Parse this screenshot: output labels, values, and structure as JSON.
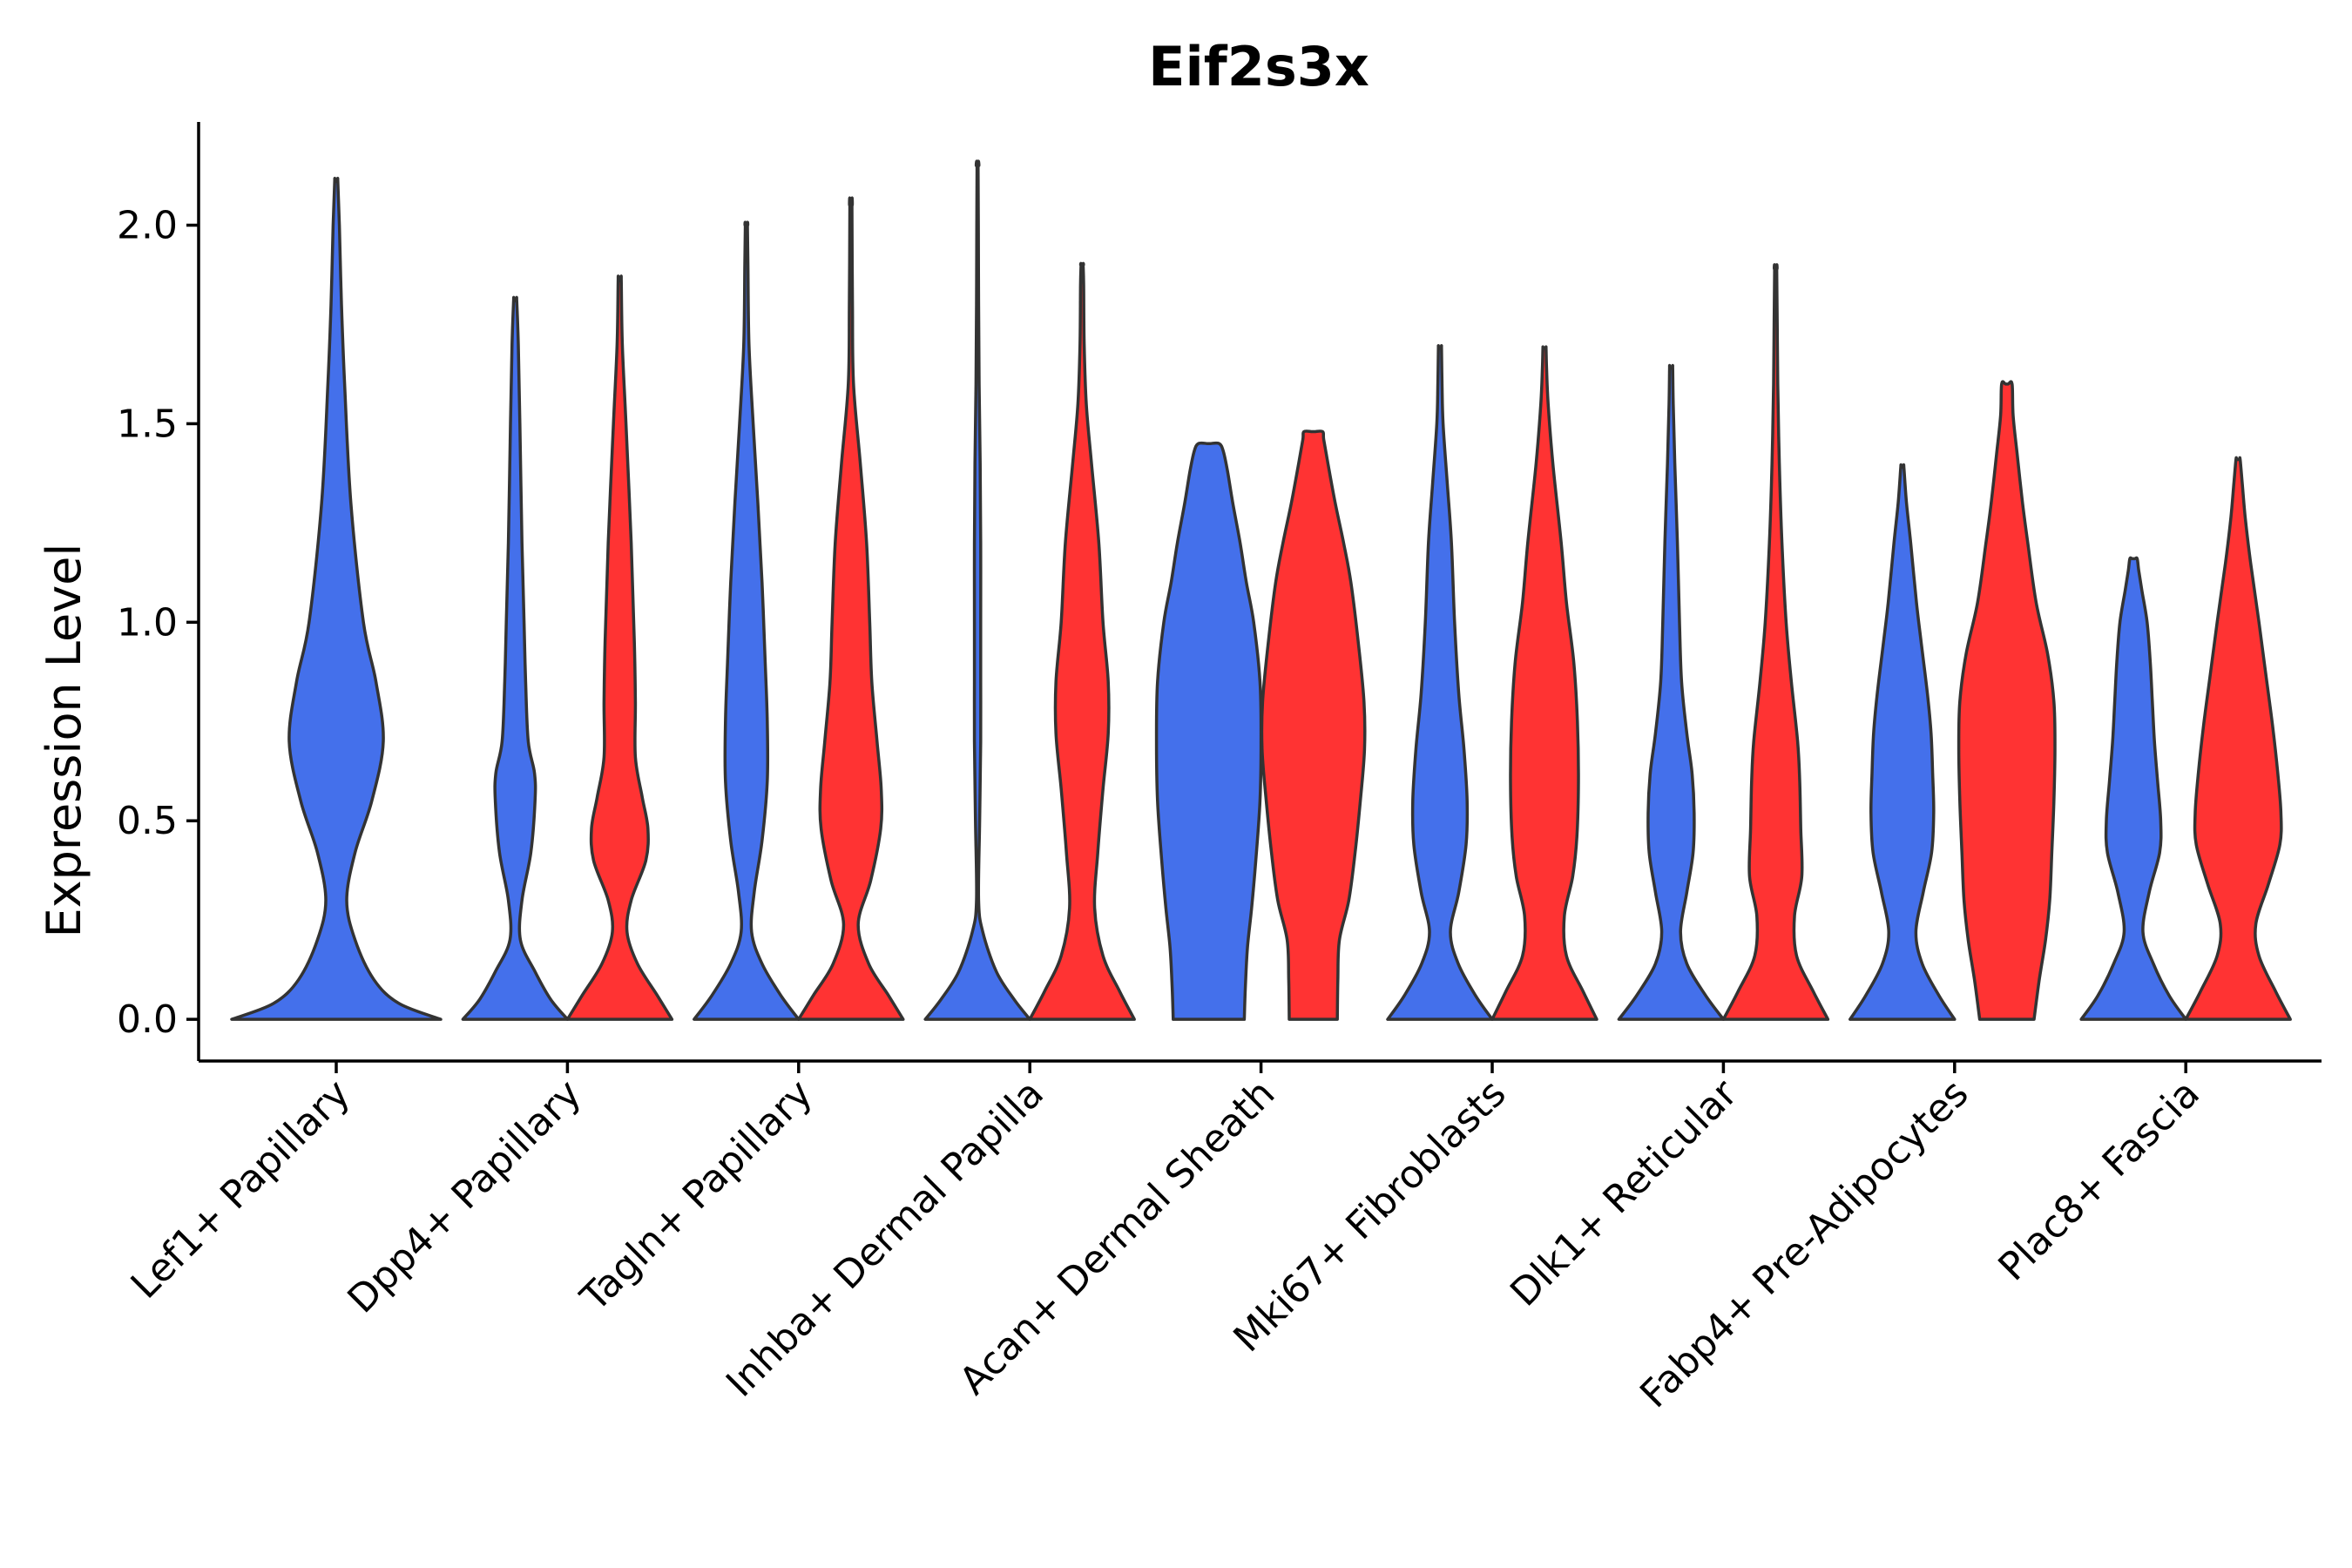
{
  "chart_data": {
    "type": "violin",
    "title": "Eif2s3x",
    "xlabel": "",
    "ylabel": "Expression Level",
    "ylim": [
      -0.105,
      2.26
    ],
    "yticks": [
      0.0,
      0.5,
      1.0,
      1.5,
      2.0
    ],
    "ytick_labels": [
      "0.0",
      "0.5",
      "1.0",
      "1.5",
      "2.0"
    ],
    "grid": false,
    "legend": "none",
    "colors": {
      "blue": "#4470EB",
      "red": "#FF3333",
      "outline": "#333333"
    },
    "categories": [
      "Lef1+ Papillary",
      "Dpp4+ Papillary",
      "Tagln+ Papillary",
      "Inhba+ Dermal Papilla",
      "Acan+ Dermal Sheath",
      "Mki67+ Fibroblasts",
      "Dlk1+ Reticular",
      "Fabp4+ Pre-Adipocytes",
      "Plac8+ Fascia"
    ],
    "violins": [
      {
        "category": "Lef1+ Papillary",
        "group": "blue",
        "max": 2.11,
        "profile": [
          [
            0.0,
            1.0
          ],
          [
            0.04,
            0.6
          ],
          [
            0.1,
            0.36
          ],
          [
            0.2,
            0.18
          ],
          [
            0.3,
            0.1
          ],
          [
            0.42,
            0.18
          ],
          [
            0.55,
            0.34
          ],
          [
            0.7,
            0.45
          ],
          [
            0.85,
            0.38
          ],
          [
            1.0,
            0.26
          ],
          [
            1.3,
            0.14
          ],
          [
            1.6,
            0.08
          ],
          [
            1.8,
            0.05
          ],
          [
            2.0,
            0.03
          ],
          [
            2.11,
            0.015
          ]
        ]
      },
      {
        "category": "Dpp4+ Papillary",
        "group": "blue",
        "max": 1.81,
        "profile": [
          [
            0.0,
            1.0
          ],
          [
            0.05,
            0.68
          ],
          [
            0.12,
            0.38
          ],
          [
            0.2,
            0.1
          ],
          [
            0.3,
            0.13
          ],
          [
            0.42,
            0.3
          ],
          [
            0.55,
            0.38
          ],
          [
            0.62,
            0.37
          ],
          [
            0.7,
            0.25
          ],
          [
            0.85,
            0.2
          ],
          [
            1.0,
            0.17
          ],
          [
            1.2,
            0.13
          ],
          [
            1.5,
            0.09
          ],
          [
            1.7,
            0.06
          ],
          [
            1.81,
            0.03
          ]
        ]
      },
      {
        "category": "Dpp4+ Papillary",
        "group": "red",
        "max": 1.86,
        "profile": [
          [
            0.0,
            1.0
          ],
          [
            0.06,
            0.72
          ],
          [
            0.14,
            0.34
          ],
          [
            0.22,
            0.14
          ],
          [
            0.3,
            0.22
          ],
          [
            0.4,
            0.5
          ],
          [
            0.48,
            0.54
          ],
          [
            0.56,
            0.43
          ],
          [
            0.66,
            0.3
          ],
          [
            0.8,
            0.3
          ],
          [
            0.95,
            0.28
          ],
          [
            1.2,
            0.22
          ],
          [
            1.5,
            0.12
          ],
          [
            1.7,
            0.05
          ],
          [
            1.86,
            0.03
          ]
        ]
      },
      {
        "category": "Tagln+ Papillary",
        "group": "blue",
        "max": 2.0,
        "profile": [
          [
            0.0,
            1.0
          ],
          [
            0.06,
            0.66
          ],
          [
            0.14,
            0.3
          ],
          [
            0.22,
            0.1
          ],
          [
            0.32,
            0.15
          ],
          [
            0.45,
            0.3
          ],
          [
            0.6,
            0.4
          ],
          [
            0.75,
            0.4
          ],
          [
            0.9,
            0.36
          ],
          [
            1.1,
            0.3
          ],
          [
            1.3,
            0.22
          ],
          [
            1.5,
            0.13
          ],
          [
            1.7,
            0.05
          ],
          [
            1.9,
            0.03
          ],
          [
            2.0,
            0.02
          ]
        ]
      },
      {
        "category": "Tagln+ Papillary",
        "group": "red",
        "max": 2.05,
        "profile": [
          [
            0.0,
            1.0
          ],
          [
            0.06,
            0.72
          ],
          [
            0.14,
            0.34
          ],
          [
            0.24,
            0.14
          ],
          [
            0.35,
            0.38
          ],
          [
            0.48,
            0.57
          ],
          [
            0.58,
            0.58
          ],
          [
            0.7,
            0.5
          ],
          [
            0.85,
            0.4
          ],
          [
            1.0,
            0.36
          ],
          [
            1.2,
            0.3
          ],
          [
            1.4,
            0.18
          ],
          [
            1.6,
            0.05
          ],
          [
            1.8,
            0.03
          ],
          [
            2.05,
            0.02
          ]
        ]
      },
      {
        "category": "Inhba+ Dermal Papilla",
        "group": "blue",
        "max": 2.15,
        "profile": [
          [
            0.0,
            1.0
          ],
          [
            0.05,
            0.7
          ],
          [
            0.12,
            0.36
          ],
          [
            0.22,
            0.1
          ],
          [
            0.3,
            0.02
          ],
          [
            0.5,
            0.04
          ],
          [
            0.7,
            0.06
          ],
          [
            0.85,
            0.06
          ],
          [
            1.0,
            0.06
          ],
          [
            1.2,
            0.06
          ],
          [
            1.4,
            0.05
          ],
          [
            1.6,
            0.03
          ],
          [
            1.8,
            0.02
          ],
          [
            2.0,
            0.015
          ],
          [
            2.15,
            0.01
          ]
        ]
      },
      {
        "category": "Inhba+ Dermal Papilla",
        "group": "red",
        "max": 1.9,
        "profile": [
          [
            0.0,
            1.0
          ],
          [
            0.07,
            0.72
          ],
          [
            0.16,
            0.4
          ],
          [
            0.28,
            0.24
          ],
          [
            0.42,
            0.3
          ],
          [
            0.58,
            0.4
          ],
          [
            0.72,
            0.5
          ],
          [
            0.85,
            0.5
          ],
          [
            1.0,
            0.4
          ],
          [
            1.2,
            0.32
          ],
          [
            1.4,
            0.18
          ],
          [
            1.55,
            0.08
          ],
          [
            1.7,
            0.04
          ],
          [
            1.85,
            0.03
          ],
          [
            1.9,
            0.02
          ]
        ]
      },
      {
        "category": "Acan+ Dermal Sheath",
        "group": "blue",
        "max": 1.45,
        "profile": [
          [
            0.0,
            0.68
          ],
          [
            0.08,
            0.7
          ],
          [
            0.18,
            0.74
          ],
          [
            0.28,
            0.82
          ],
          [
            0.4,
            0.9
          ],
          [
            0.55,
            0.98
          ],
          [
            0.7,
            1.0
          ],
          [
            0.85,
            0.98
          ],
          [
            1.0,
            0.86
          ],
          [
            1.1,
            0.72
          ],
          [
            1.2,
            0.6
          ],
          [
            1.3,
            0.46
          ],
          [
            1.38,
            0.36
          ],
          [
            1.43,
            0.28
          ],
          [
            1.45,
            0.2
          ]
        ]
      },
      {
        "category": "Acan+ Dermal Sheath",
        "group": "red",
        "max": 1.48,
        "profile": [
          [
            0.0,
            0.46
          ],
          [
            0.1,
            0.47
          ],
          [
            0.2,
            0.5
          ],
          [
            0.3,
            0.68
          ],
          [
            0.42,
            0.8
          ],
          [
            0.55,
            0.9
          ],
          [
            0.68,
            0.98
          ],
          [
            0.8,
            0.97
          ],
          [
            0.95,
            0.86
          ],
          [
            1.1,
            0.72
          ],
          [
            1.2,
            0.58
          ],
          [
            1.3,
            0.42
          ],
          [
            1.4,
            0.28
          ],
          [
            1.46,
            0.2
          ],
          [
            1.48,
            0.18
          ]
        ]
      },
      {
        "category": "Mki67+ Fibroblasts",
        "group": "blue",
        "max": 1.69,
        "profile": [
          [
            0.0,
            1.0
          ],
          [
            0.06,
            0.68
          ],
          [
            0.14,
            0.35
          ],
          [
            0.22,
            0.2
          ],
          [
            0.32,
            0.36
          ],
          [
            0.44,
            0.5
          ],
          [
            0.55,
            0.52
          ],
          [
            0.68,
            0.46
          ],
          [
            0.82,
            0.36
          ],
          [
            1.0,
            0.28
          ],
          [
            1.2,
            0.22
          ],
          [
            1.35,
            0.14
          ],
          [
            1.5,
            0.06
          ],
          [
            1.6,
            0.04
          ],
          [
            1.69,
            0.03
          ]
        ]
      },
      {
        "category": "Mki67+ Fibroblasts",
        "group": "red",
        "max": 1.69,
        "profile": [
          [
            0.0,
            1.0
          ],
          [
            0.07,
            0.74
          ],
          [
            0.16,
            0.42
          ],
          [
            0.26,
            0.38
          ],
          [
            0.36,
            0.54
          ],
          [
            0.46,
            0.62
          ],
          [
            0.6,
            0.65
          ],
          [
            0.75,
            0.63
          ],
          [
            0.9,
            0.56
          ],
          [
            1.05,
            0.42
          ],
          [
            1.2,
            0.32
          ],
          [
            1.4,
            0.16
          ],
          [
            1.55,
            0.07
          ],
          [
            1.64,
            0.04
          ],
          [
            1.69,
            0.03
          ]
        ]
      },
      {
        "category": "Dlk1+ Reticular",
        "group": "blue",
        "max": 1.64,
        "profile": [
          [
            0.0,
            1.0
          ],
          [
            0.06,
            0.66
          ],
          [
            0.14,
            0.3
          ],
          [
            0.22,
            0.18
          ],
          [
            0.32,
            0.3
          ],
          [
            0.42,
            0.42
          ],
          [
            0.52,
            0.44
          ],
          [
            0.62,
            0.4
          ],
          [
            0.72,
            0.3
          ],
          [
            0.85,
            0.2
          ],
          [
            1.0,
            0.16
          ],
          [
            1.2,
            0.12
          ],
          [
            1.4,
            0.07
          ],
          [
            1.55,
            0.04
          ],
          [
            1.64,
            0.03
          ]
        ]
      },
      {
        "category": "Dlk1+ Reticular",
        "group": "red",
        "max": 1.89,
        "profile": [
          [
            0.0,
            1.0
          ],
          [
            0.07,
            0.72
          ],
          [
            0.16,
            0.4
          ],
          [
            0.26,
            0.36
          ],
          [
            0.36,
            0.5
          ],
          [
            0.48,
            0.48
          ],
          [
            0.6,
            0.46
          ],
          [
            0.7,
            0.42
          ],
          [
            0.85,
            0.3
          ],
          [
            1.0,
            0.2
          ],
          [
            1.2,
            0.12
          ],
          [
            1.4,
            0.07
          ],
          [
            1.6,
            0.04
          ],
          [
            1.75,
            0.03
          ],
          [
            1.89,
            0.02
          ]
        ]
      },
      {
        "category": "Fabp4+ Pre-Adipocytes",
        "group": "blue",
        "max": 1.39,
        "profile": [
          [
            0.0,
            1.0
          ],
          [
            0.06,
            0.7
          ],
          [
            0.14,
            0.38
          ],
          [
            0.22,
            0.26
          ],
          [
            0.32,
            0.4
          ],
          [
            0.42,
            0.56
          ],
          [
            0.52,
            0.6
          ],
          [
            0.62,
            0.58
          ],
          [
            0.72,
            0.55
          ],
          [
            0.82,
            0.48
          ],
          [
            0.95,
            0.36
          ],
          [
            1.05,
            0.27
          ],
          [
            1.2,
            0.16
          ],
          [
            1.3,
            0.08
          ],
          [
            1.39,
            0.03
          ]
        ]
      },
      {
        "category": "Fabp4+ Pre-Adipocytes",
        "group": "red",
        "max": 1.6,
        "profile": [
          [
            0.0,
            0.52
          ],
          [
            0.1,
            0.62
          ],
          [
            0.2,
            0.74
          ],
          [
            0.3,
            0.82
          ],
          [
            0.42,
            0.86
          ],
          [
            0.55,
            0.9
          ],
          [
            0.68,
            0.92
          ],
          [
            0.8,
            0.9
          ],
          [
            0.92,
            0.78
          ],
          [
            1.05,
            0.56
          ],
          [
            1.2,
            0.4
          ],
          [
            1.3,
            0.3
          ],
          [
            1.42,
            0.2
          ],
          [
            1.52,
            0.12
          ],
          [
            1.6,
            0.1
          ]
        ]
      },
      {
        "category": "Plac8+ Fascia",
        "group": "blue",
        "max": 1.16,
        "profile": [
          [
            0.0,
            1.0
          ],
          [
            0.06,
            0.68
          ],
          [
            0.14,
            0.38
          ],
          [
            0.22,
            0.18
          ],
          [
            0.32,
            0.3
          ],
          [
            0.42,
            0.5
          ],
          [
            0.5,
            0.52
          ],
          [
            0.6,
            0.46
          ],
          [
            0.7,
            0.4
          ],
          [
            0.8,
            0.36
          ],
          [
            0.9,
            0.32
          ],
          [
            1.0,
            0.26
          ],
          [
            1.08,
            0.16
          ],
          [
            1.13,
            0.1
          ],
          [
            1.16,
            0.07
          ]
        ]
      },
      {
        "category": "Plac8+ Fascia",
        "group": "red",
        "max": 1.41,
        "profile": [
          [
            0.0,
            1.0
          ],
          [
            0.07,
            0.72
          ],
          [
            0.16,
            0.4
          ],
          [
            0.24,
            0.34
          ],
          [
            0.34,
            0.58
          ],
          [
            0.44,
            0.8
          ],
          [
            0.52,
            0.82
          ],
          [
            0.62,
            0.76
          ],
          [
            0.74,
            0.66
          ],
          [
            0.86,
            0.54
          ],
          [
            1.0,
            0.4
          ],
          [
            1.15,
            0.24
          ],
          [
            1.26,
            0.14
          ],
          [
            1.35,
            0.08
          ],
          [
            1.41,
            0.04
          ]
        ]
      }
    ]
  }
}
